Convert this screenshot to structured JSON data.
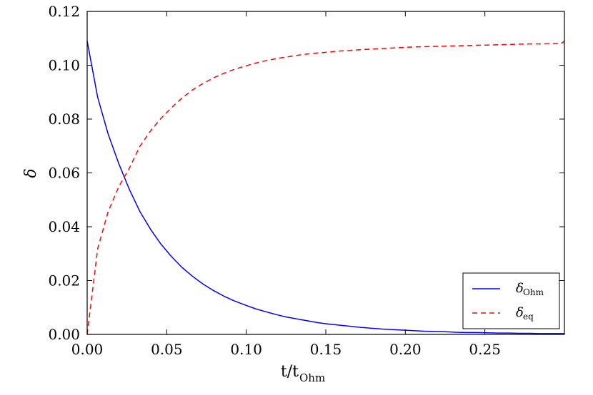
{
  "chart_data": {
    "type": "line",
    "xlabel": {
      "main": "t/t",
      "sub": "Ohm"
    },
    "ylabel": "δ",
    "xlim": [
      0.0,
      0.3
    ],
    "ylim": [
      0.0,
      0.12
    ],
    "x_ticks": [
      "0.00",
      "0.05",
      "0.10",
      "0.15",
      "0.20",
      "0.25"
    ],
    "x_tick_values": [
      0.0,
      0.05,
      0.1,
      0.15,
      0.2,
      0.25
    ],
    "y_ticks": [
      "0.00",
      "0.02",
      "0.04",
      "0.06",
      "0.08",
      "0.10",
      "0.12"
    ],
    "y_tick_values": [
      0.0,
      0.02,
      0.04,
      0.06,
      0.08,
      0.1,
      0.12
    ],
    "grid": false,
    "legend_position": "bottom-right",
    "series": [
      {
        "name": "δ",
        "name_sub": "Ohm",
        "color": "#0000ff",
        "style": "solid",
        "x": [
          0.0,
          0.0066,
          0.0132,
          0.0199,
          0.0265,
          0.0331,
          0.0397,
          0.0463,
          0.053,
          0.0596,
          0.0662,
          0.0728,
          0.0794,
          0.086,
          0.0927,
          0.0993,
          0.1059,
          0.1125,
          0.1192,
          0.1258,
          0.1324,
          0.139,
          0.1456,
          0.1523,
          0.1589,
          0.1655,
          0.1721,
          0.1787,
          0.1854,
          0.192,
          0.1986,
          0.2052,
          0.2118,
          0.2185,
          0.2251,
          0.2317,
          0.2383,
          0.2449,
          0.2516,
          0.2582,
          0.2648,
          0.2714,
          0.278,
          0.2846,
          0.2913,
          0.2979,
          0.3
        ],
        "y": [
          0.109,
          0.0881,
          0.0744,
          0.0634,
          0.0539,
          0.0457,
          0.0392,
          0.0336,
          0.0289,
          0.0249,
          0.0216,
          0.0187,
          0.0163,
          0.0142,
          0.0124,
          0.0109,
          0.0095,
          0.0084,
          0.0073,
          0.0064,
          0.0057,
          0.005,
          0.0043,
          0.0038,
          0.0034,
          0.003,
          0.0026,
          0.0023,
          0.002,
          0.0018,
          0.0016,
          0.0014,
          0.0012,
          0.0011,
          0.001,
          0.0008,
          0.0007,
          0.0007,
          0.0006,
          0.0005,
          0.0005,
          0.0004,
          0.0004,
          0.0003,
          0.0003,
          0.0003,
          0.0003
        ]
      },
      {
        "name": "δ",
        "name_sub": "eq",
        "color": "#ff0000",
        "style": "dashed",
        "x": [
          0.0,
          0.0066,
          0.0132,
          0.0199,
          0.0265,
          0.0331,
          0.0397,
          0.0463,
          0.053,
          0.0596,
          0.0662,
          0.0728,
          0.0794,
          0.086,
          0.0927,
          0.0993,
          0.1059,
          0.1125,
          0.1192,
          0.1258,
          0.1324,
          0.139,
          0.1456,
          0.1523,
          0.1589,
          0.1655,
          0.1721,
          0.1787,
          0.1854,
          0.192,
          0.1986,
          0.2052,
          0.2118,
          0.2185,
          0.2251,
          0.2317,
          0.2383,
          0.2449,
          0.2516,
          0.2582,
          0.2648,
          0.2714,
          0.278,
          0.2846,
          0.2913,
          0.2979,
          0.3
        ],
        "y": [
          0.0,
          0.0318,
          0.0456,
          0.0549,
          0.0617,
          0.0698,
          0.0755,
          0.0802,
          0.0842,
          0.0878,
          0.0908,
          0.0932,
          0.0953,
          0.097,
          0.0985,
          0.0997,
          0.1008,
          0.1017,
          0.1025,
          0.1031,
          0.1037,
          0.1042,
          0.1046,
          0.1049,
          0.1053,
          0.1055,
          0.1058,
          0.106,
          0.1062,
          0.1064,
          0.1066,
          0.1068,
          0.1069,
          0.107,
          0.1071,
          0.1072,
          0.1073,
          0.1074,
          0.1075,
          0.1076,
          0.1077,
          0.1078,
          0.1079,
          0.1079,
          0.108,
          0.108,
          0.109
        ]
      }
    ]
  }
}
